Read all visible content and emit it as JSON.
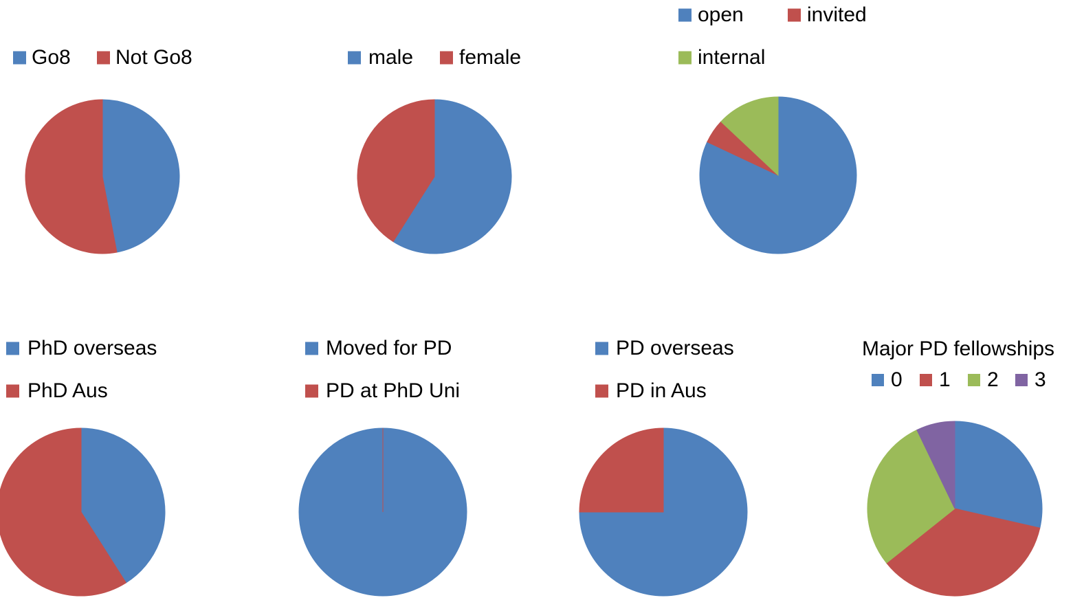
{
  "chart_data": [
    {
      "type": "pie",
      "categories": [
        "Go8",
        "Not Go8"
      ],
      "values": [
        47,
        53
      ],
      "colors": [
        "#4f81bd",
        "#c0504d"
      ]
    },
    {
      "type": "pie",
      "categories": [
        "male",
        "female"
      ],
      "values": [
        59,
        41
      ],
      "colors": [
        "#4f81bd",
        "#c0504d"
      ]
    },
    {
      "type": "pie",
      "categories": [
        "open",
        "invited",
        "internal"
      ],
      "values": [
        82,
        5,
        13
      ],
      "colors": [
        "#4f81bd",
        "#c0504d",
        "#9bbb59"
      ]
    },
    {
      "type": "pie",
      "categories": [
        "PhD overseas",
        "PhD Aus"
      ],
      "values": [
        41,
        59
      ],
      "colors": [
        "#4f81bd",
        "#c0504d"
      ]
    },
    {
      "type": "pie",
      "categories": [
        "Moved for PD",
        "PD at PhD Uni"
      ],
      "values": [
        100,
        0
      ],
      "colors": [
        "#4f81bd",
        "#c0504d"
      ]
    },
    {
      "type": "pie",
      "categories": [
        "PD overseas",
        "PD in Aus"
      ],
      "values": [
        75,
        25
      ],
      "colors": [
        "#4f81bd",
        "#c0504d"
      ]
    },
    {
      "type": "pie",
      "title": "Major PD fellowships",
      "categories": [
        "0",
        "1",
        "2",
        "3"
      ],
      "values": [
        4,
        5,
        4,
        1
      ],
      "colors": [
        "#4f81bd",
        "#c0504d",
        "#9bbb59",
        "#8064a2"
      ]
    }
  ]
}
